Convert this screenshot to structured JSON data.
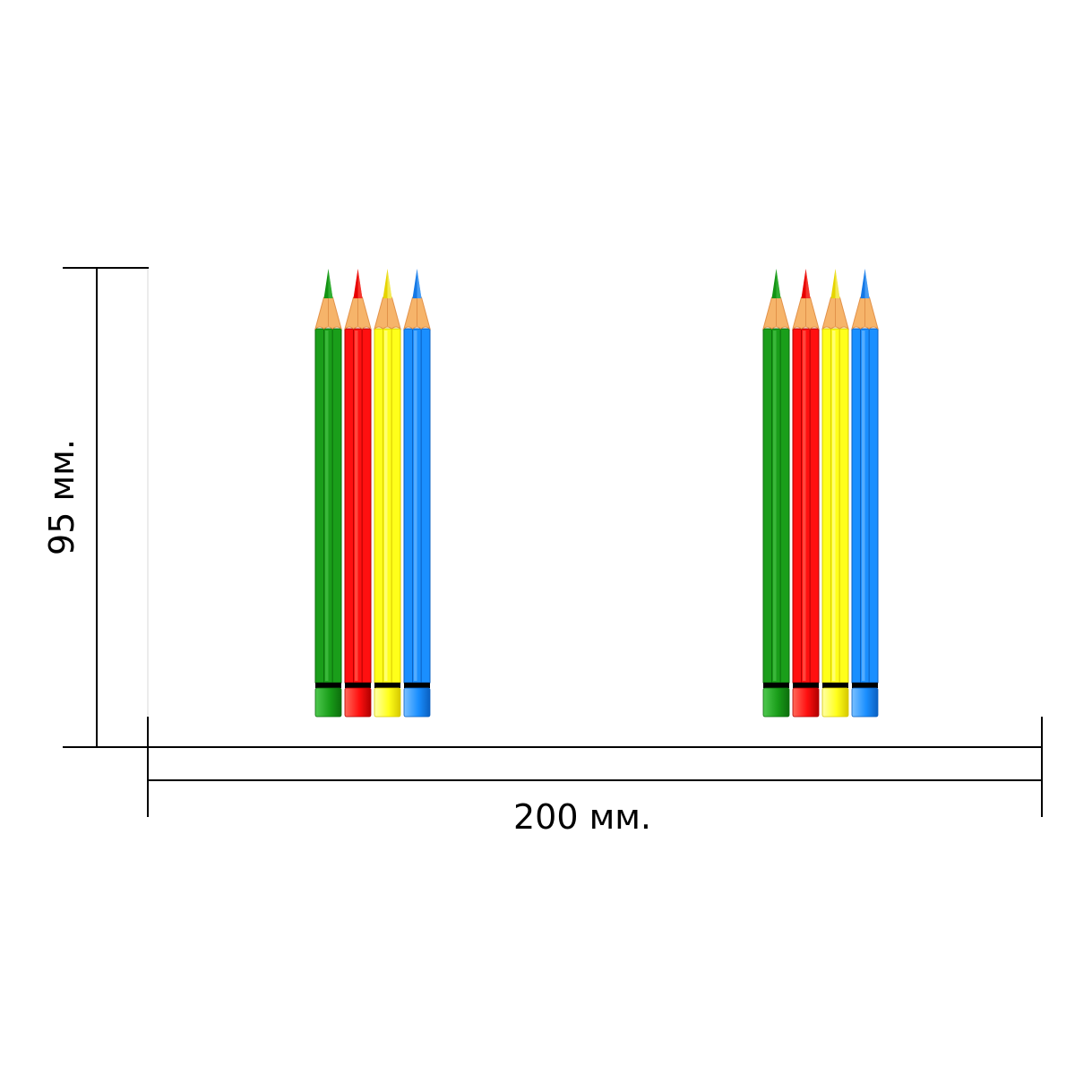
{
  "dimensions": {
    "height_label": "95 мм.",
    "width_label": "200 мм."
  },
  "pencil_groups": [
    {
      "name": "left",
      "pencils": [
        {
          "color_name": "green",
          "body": "#1a9e1a",
          "dark": "#0c6e0c",
          "light": "#4fc84f",
          "tip": "#139313"
        },
        {
          "color_name": "red",
          "body": "#ff1010",
          "dark": "#b00000",
          "light": "#ff6a5a",
          "tip": "#e80000"
        },
        {
          "color_name": "yellow",
          "body": "#ffff1a",
          "dark": "#d6c800",
          "light": "#ffffa8",
          "tip": "#e6d400"
        },
        {
          "color_name": "blue",
          "body": "#1a8fff",
          "dark": "#0a5fc0",
          "light": "#7ac0ff",
          "tip": "#1478e6"
        }
      ]
    },
    {
      "name": "right",
      "pencils": [
        {
          "color_name": "green",
          "body": "#1a9e1a",
          "dark": "#0c6e0c",
          "light": "#4fc84f",
          "tip": "#139313"
        },
        {
          "color_name": "red",
          "body": "#ff1010",
          "dark": "#b00000",
          "light": "#ff6a5a",
          "tip": "#e80000"
        },
        {
          "color_name": "yellow",
          "body": "#ffff1a",
          "dark": "#d6c800",
          "light": "#ffffa8",
          "tip": "#e6d400"
        },
        {
          "color_name": "blue",
          "body": "#1a8fff",
          "dark": "#0a5fc0",
          "light": "#7ac0ff",
          "tip": "#1478e6"
        }
      ]
    }
  ],
  "colors": {
    "wood": "#f6b46a",
    "wood_dark": "#e2924a",
    "line": "#000000"
  }
}
